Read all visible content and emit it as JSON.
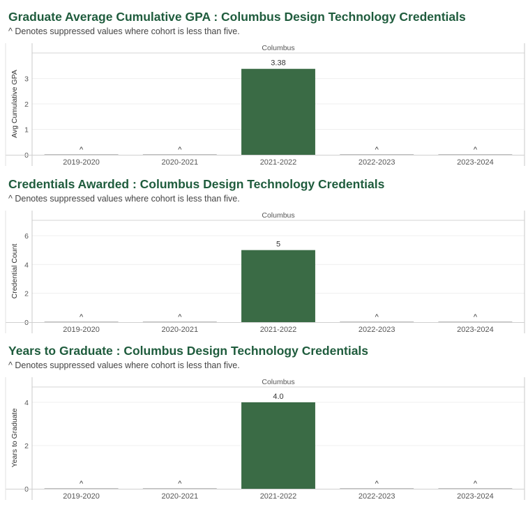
{
  "chart_data": [
    {
      "type": "bar",
      "title": "Graduate Average Cumulative GPA : Columbus Design Technology Credentials",
      "subtitle": "^ Denotes suppressed values where cohort is less than five.",
      "facet_header": "Columbus",
      "ylabel": "Avg Cumulative GPA",
      "xlabel": "",
      "categories": [
        "2019-2020",
        "2020-2021",
        "2021-2022",
        "2022-2023",
        "2023-2024"
      ],
      "values": [
        null,
        null,
        3.38,
        null,
        null
      ],
      "data_labels": [
        "^",
        "^",
        "3.38",
        "^",
        "^"
      ],
      "yticks": [
        0,
        1,
        2,
        3
      ],
      "ylim": [
        0,
        3.4
      ],
      "bar_color": "#3a6b45"
    },
    {
      "type": "bar",
      "title": "Credentials Awarded : Columbus Design Technology Credentials",
      "subtitle": "^ Denotes suppressed values where cohort is less than five.",
      "facet_header": "Columbus",
      "ylabel": "Credential Count",
      "xlabel": "",
      "categories": [
        "2019-2020",
        "2020-2021",
        "2021-2022",
        "2022-2023",
        "2023-2024"
      ],
      "values": [
        null,
        null,
        5,
        null,
        null
      ],
      "data_labels": [
        "^",
        "^",
        "5",
        "^",
        "^"
      ],
      "yticks": [
        0,
        2,
        4,
        6
      ],
      "ylim": [
        0,
        6
      ],
      "bar_color": "#3a6b45"
    },
    {
      "type": "bar",
      "title": "Years to Graduate : Columbus Design Technology Credentials",
      "subtitle": "^ Denotes suppressed values where cohort is less than five.",
      "facet_header": "Columbus",
      "ylabel": "Years to Graduate",
      "xlabel": "",
      "categories": [
        "2019-2020",
        "2020-2021",
        "2021-2022",
        "2022-2023",
        "2023-2024"
      ],
      "values": [
        null,
        null,
        4.0,
        null,
        null
      ],
      "data_labels": [
        "^",
        "^",
        "4.0",
        "^",
        "^"
      ],
      "yticks": [
        0,
        2,
        4
      ],
      "ylim": [
        0,
        4
      ],
      "bar_color": "#3a6b45"
    }
  ]
}
